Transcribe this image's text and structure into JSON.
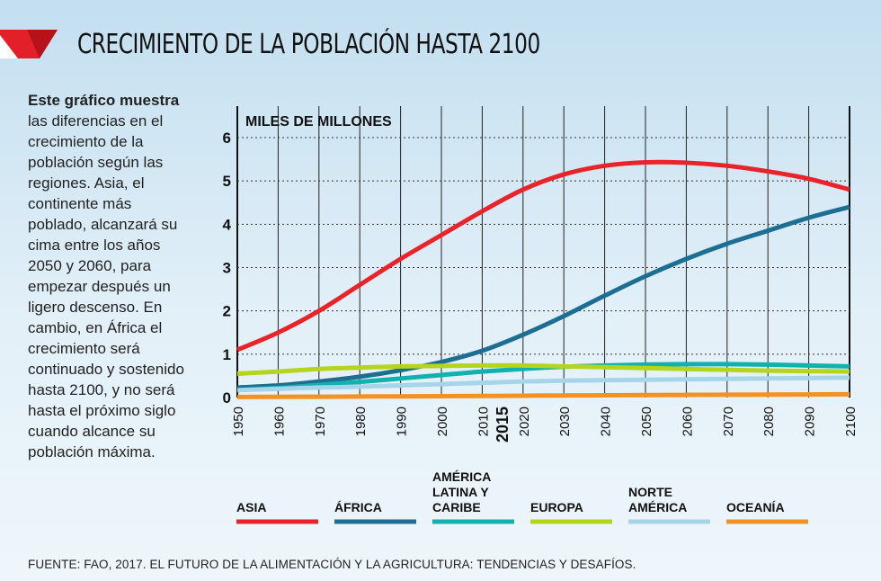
{
  "header": {
    "title": "CRECIMIENTO DE LA POBLACIÓN HASTA 2100"
  },
  "intro": {
    "bold": "Este gráfico muestra",
    "text": "las diferencias en el crecimiento de la población según las regiones. Asia, el continente más poblado, alcanzará su cima entre los años 2050 y 2060, para empezar después un ligero descenso. En cambio, en África el crecimiento será continuado y sostenido hasta 2100, y no será hasta el próximo siglo cuando alcance su población máxima."
  },
  "footer": {
    "source": "FUENTE: FAO, 2017. EL FUTURO DE LA ALIMENTACIÓN Y LA AGRICULTURA: TENDENCIAS Y DESAFÍOS."
  },
  "colors": {
    "logo_red": "#e3202a",
    "logo_dark": "#b5121b"
  },
  "chart_data": {
    "type": "line",
    "ylabel": "MILES DE MILLONES",
    "ylim": [
      0,
      6
    ],
    "yticks": [
      "0",
      "1",
      "2",
      "3",
      "4",
      "5",
      "6"
    ],
    "xlim": [
      1950,
      2100
    ],
    "xticks": [
      "1950",
      "1960",
      "1970",
      "1980",
      "1990",
      "2000",
      "2010",
      "2015",
      "2020",
      "2030",
      "2040",
      "2050",
      "2060",
      "2070",
      "2080",
      "2090",
      "2100"
    ],
    "highlight_tick": "2015",
    "grid": true,
    "x": [
      1950,
      1960,
      1970,
      1980,
      1990,
      2000,
      2010,
      2020,
      2030,
      2040,
      2050,
      2060,
      2070,
      2080,
      2090,
      2100
    ],
    "series": [
      {
        "name": "ASIA",
        "color": "#e8232a",
        "values": [
          1.1,
          1.5,
          2.0,
          2.6,
          3.2,
          3.75,
          4.3,
          4.8,
          5.15,
          5.35,
          5.43,
          5.42,
          5.35,
          5.22,
          5.05,
          4.8
        ]
      },
      {
        "name": "ÁFRICA",
        "color": "#1d6e93",
        "values": [
          0.23,
          0.28,
          0.37,
          0.48,
          0.63,
          0.82,
          1.08,
          1.45,
          1.88,
          2.35,
          2.8,
          3.2,
          3.55,
          3.85,
          4.15,
          4.4
        ]
      },
      {
        "name": "AMÉRICA LATINA Y CARIBE",
        "color": "#11b2ad",
        "values": [
          0.17,
          0.22,
          0.29,
          0.36,
          0.44,
          0.52,
          0.6,
          0.66,
          0.71,
          0.74,
          0.76,
          0.77,
          0.77,
          0.76,
          0.74,
          0.72
        ]
      },
      {
        "name": "EUROPA",
        "color": "#b5d41d",
        "values": [
          0.55,
          0.6,
          0.66,
          0.69,
          0.72,
          0.73,
          0.74,
          0.74,
          0.72,
          0.7,
          0.68,
          0.66,
          0.64,
          0.62,
          0.61,
          0.6
        ]
      },
      {
        "name": "NORTE AMÉRICA",
        "color": "#a6d5ea",
        "values": [
          0.17,
          0.2,
          0.23,
          0.25,
          0.28,
          0.31,
          0.34,
          0.37,
          0.39,
          0.4,
          0.41,
          0.42,
          0.43,
          0.44,
          0.45,
          0.46
        ]
      },
      {
        "name": "OCEANÍA",
        "color": "#f39123",
        "values": [
          0.013,
          0.016,
          0.019,
          0.023,
          0.027,
          0.031,
          0.036,
          0.042,
          0.048,
          0.052,
          0.057,
          0.061,
          0.064,
          0.068,
          0.071,
          0.074
        ]
      }
    ],
    "legend": [
      {
        "lines": [
          "ASIA"
        ],
        "color": "#e8232a"
      },
      {
        "lines": [
          "ÁFRICA"
        ],
        "color": "#1d6e93"
      },
      {
        "lines": [
          "AMÉRICA",
          "LATINA Y",
          "CARIBE"
        ],
        "color": "#11b2ad"
      },
      {
        "lines": [
          "EUROPA"
        ],
        "color": "#b5d41d"
      },
      {
        "lines": [
          "NORTE",
          "AMÉRICA"
        ],
        "color": "#a6d5ea"
      },
      {
        "lines": [
          "OCEANÍA"
        ],
        "color": "#f39123"
      }
    ]
  }
}
